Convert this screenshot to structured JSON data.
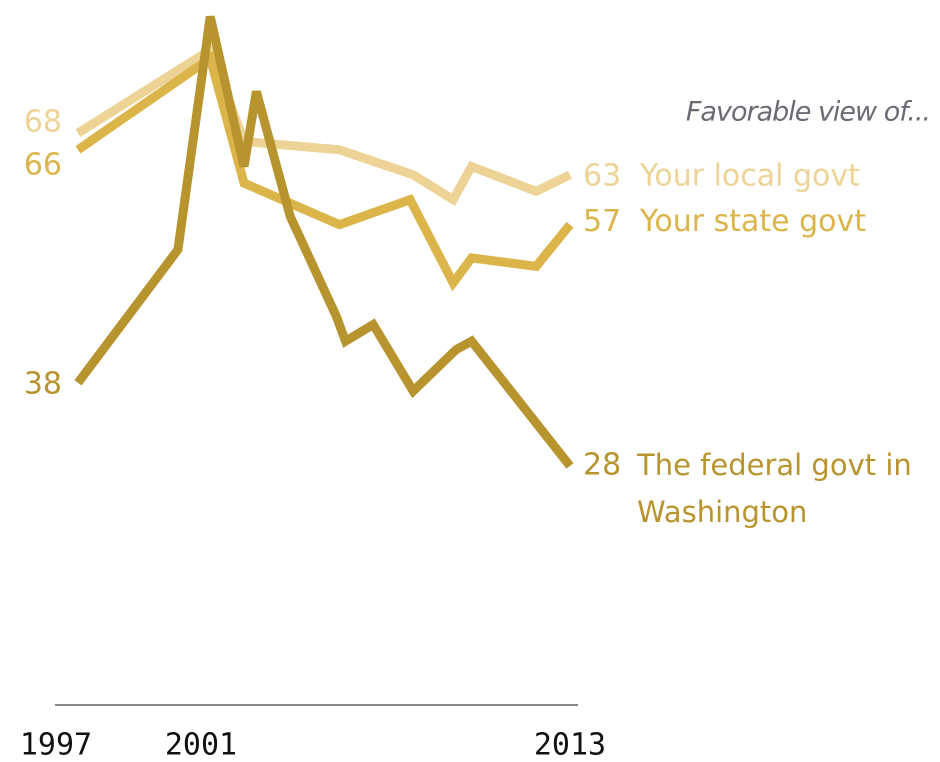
{
  "chart_data": {
    "type": "line",
    "annotation": "Favorable view of...",
    "xlim": [
      1997,
      2013
    ],
    "xticks": [
      1997,
      2001,
      2013
    ],
    "ylim": [
      0,
      84
    ],
    "series": [
      {
        "name": "Your local govt",
        "color": "#edd396",
        "x": [
          1997,
          2001.3,
          2002.4,
          2005.5,
          2007.9,
          2009.2,
          2009.8,
          2011.9,
          2013
        ],
        "values": [
          68,
          78,
          67,
          66,
          63,
          60,
          64,
          61,
          63
        ]
      },
      {
        "name": "Your state govt",
        "color": "#dbb54a",
        "x": [
          1997,
          2001.3,
          2002.4,
          2005.5,
          2007.8,
          2009.2,
          2009.8,
          2011.9,
          2013
        ],
        "values": [
          66,
          77,
          62,
          57,
          60,
          50,
          53,
          52,
          57
        ]
      },
      {
        "name": "The federal govt in Washington",
        "color": "#b8942f",
        "x": [
          1997,
          2000.25,
          2001.3,
          2002.4,
          2002.8,
          2003.9,
          2005.4,
          2005.7,
          2006.6,
          2007.9,
          2009.3,
          2009.8,
          2013
        ],
        "values": [
          38,
          54,
          82,
          64,
          73,
          58,
          46,
          43,
          45,
          37,
          42,
          43,
          28
        ]
      }
    ]
  }
}
